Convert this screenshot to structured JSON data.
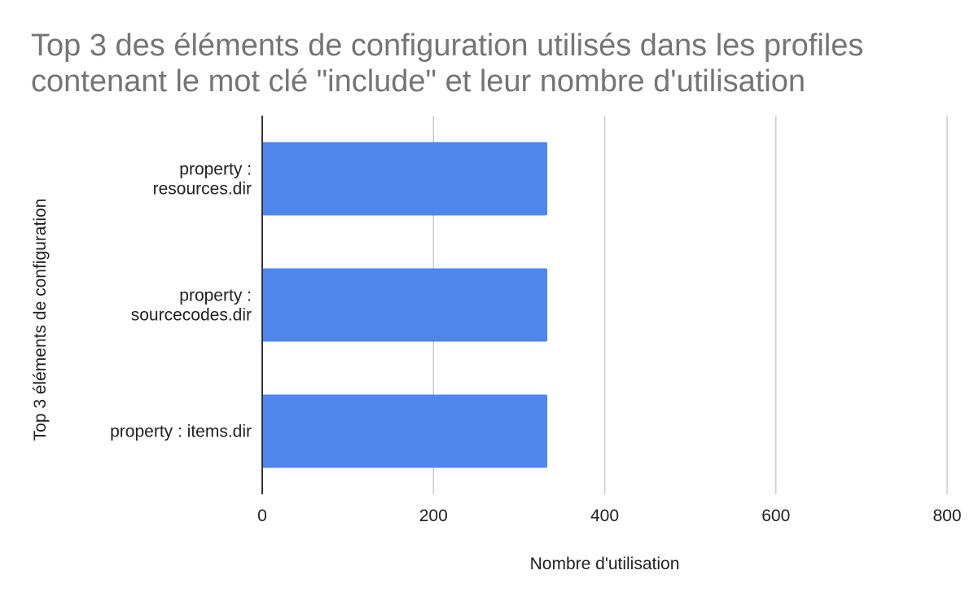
{
  "chart_data": {
    "type": "bar",
    "orientation": "horizontal",
    "title_lines": [
      "Top 3 des éléments de configuration utilisés dans les profiles",
      "contenant le mot clé \"include\" et leur nombre d'utilisation"
    ],
    "categories": [
      [
        "property :",
        "resources.dir"
      ],
      [
        "property :",
        "sourcecodes.dir"
      ],
      [
        "property : items.dir"
      ]
    ],
    "values": [
      333,
      333,
      333
    ],
    "xlabel": "Nombre d'utilisation",
    "ylabel": "Top 3 éléments de configuration",
    "xlim": [
      0,
      800
    ],
    "xticks": [
      "0",
      "200",
      "400",
      "600",
      "800"
    ],
    "grid": true,
    "legend": "none",
    "colors": {
      "bar": "#5086EC",
      "grid": "#CCCCCC",
      "axis": "#333333",
      "title": "#757575",
      "text": "#222222"
    }
  }
}
